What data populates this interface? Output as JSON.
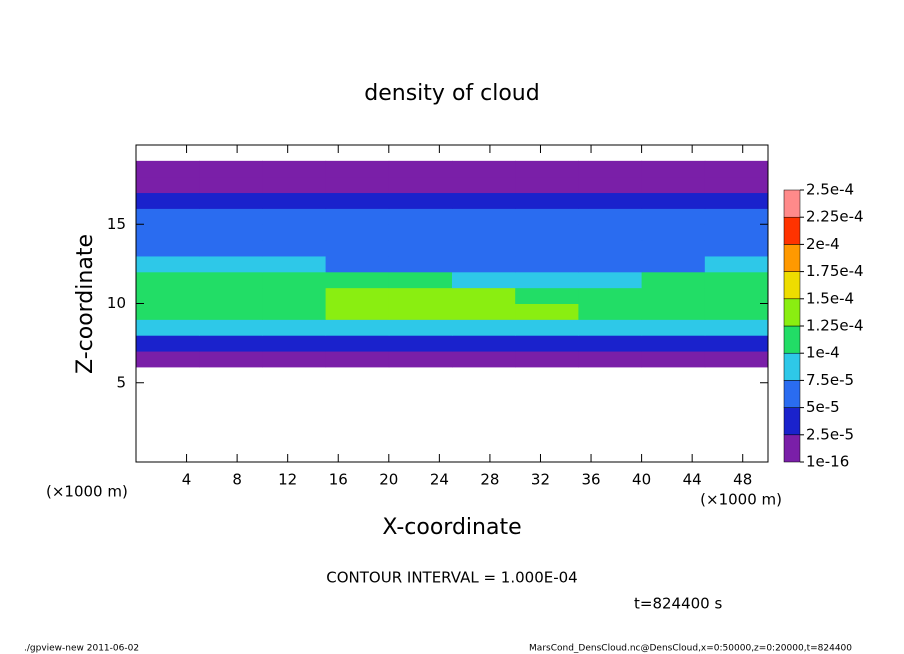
{
  "chart_data": {
    "type": "contour",
    "title": "density of cloud",
    "x_label": "X-coordinate",
    "y_label": "Z-coordinate",
    "x_unit": "(×1000 m)",
    "y_unit": "(×1000 m)",
    "contour_note": "CONTOUR INTERVAL = 1.000E-04",
    "time_note": "t=824400 s",
    "footer_left": "./gpview-new  2011-06-02",
    "footer_right": "MarsCond_DensCloud.nc@DensCloud,x=0:50000,z=0:20000,t=824400",
    "xlim": [
      0,
      50
    ],
    "ylim": [
      0,
      20
    ],
    "xticks": [
      4,
      8,
      12,
      16,
      20,
      24,
      28,
      32,
      36,
      40,
      44,
      48
    ],
    "yticks": [
      5,
      10,
      15
    ],
    "x": [
      2.5,
      7.5,
      12.5,
      17.5,
      22.5,
      27.5,
      32.5,
      37.5,
      42.5,
      47.5
    ],
    "y": [
      6.5,
      7.5,
      8.5,
      9.5,
      10.5,
      11.5,
      12.5,
      13.5,
      14.5,
      15.5,
      16.5,
      17.5,
      18.5
    ],
    "values": [
      [
        1e-05,
        1e-05,
        1e-05,
        1e-05,
        1e-05,
        1e-05,
        1e-05,
        1e-05,
        1e-05,
        1e-05
      ],
      [
        3e-05,
        3e-05,
        3e-05,
        3e-05,
        3e-05,
        3e-05,
        3e-05,
        3e-05,
        4e-05,
        3e-05
      ],
      [
        8e-05,
        8e-05,
        8e-05,
        8.5e-05,
        9e-05,
        9e-05,
        9e-05,
        8e-05,
        8e-05,
        8e-05
      ],
      [
        0.00011,
        0.00011,
        0.000115,
        0.00013,
        0.000135,
        0.00013,
        0.00013,
        0.00011,
        0.000105,
        0.00011
      ],
      [
        0.00012,
        0.000115,
        0.00012,
        0.00013,
        0.00014,
        0.000135,
        0.00012,
        0.000105,
        0.00011,
        0.000115
      ],
      [
        0.000105,
        0.000105,
        0.0001,
        0.00011,
        0.000105,
        9e-05,
        8e-05,
        9e-05,
        0.0001,
        0.0001
      ],
      [
        8e-05,
        8e-05,
        7.5e-05,
        7e-05,
        7e-05,
        6.5e-05,
        6.5e-05,
        7e-05,
        7e-05,
        7.5e-05
      ],
      [
        6.5e-05,
        6e-05,
        6e-05,
        6e-05,
        6e-05,
        6e-05,
        6e-05,
        6e-05,
        6e-05,
        6e-05
      ],
      [
        5.5e-05,
        5.5e-05,
        5.5e-05,
        5.5e-05,
        5.5e-05,
        5.5e-05,
        5.5e-05,
        5.5e-05,
        6e-05,
        5.5e-05
      ],
      [
        5e-05,
        5e-05,
        5e-05,
        5e-05,
        5e-05,
        5.5e-05,
        5.5e-05,
        5e-05,
        5.5e-05,
        5e-05
      ],
      [
        3.5e-05,
        4e-05,
        3.5e-05,
        3.5e-05,
        3.5e-05,
        3.5e-05,
        3.5e-05,
        4e-05,
        4e-05,
        3.5e-05
      ],
      [
        1e-05,
        1e-05,
        1e-05,
        1e-05,
        1e-05,
        1e-05,
        1e-05,
        1e-05,
        1e-05,
        1e-05
      ],
      [
        5e-06,
        5e-06,
        5e-06,
        5e-06,
        5e-06,
        5e-06,
        5e-06,
        5e-06,
        5e-06,
        5e-06
      ]
    ],
    "levels": [
      {
        "value": 1e-16,
        "label": "1e-16"
      },
      {
        "value": 2.5e-05,
        "label": "2.5e-5"
      },
      {
        "value": 5e-05,
        "label": "5e-5"
      },
      {
        "value": 7.5e-05,
        "label": "7.5e-5"
      },
      {
        "value": 0.0001,
        "label": "1e-4"
      },
      {
        "value": 0.000125,
        "label": "1.25e-4"
      },
      {
        "value": 0.00015,
        "label": "1.5e-4"
      },
      {
        "value": 0.000175,
        "label": "1.75e-4"
      },
      {
        "value": 0.0002,
        "label": "2e-4"
      },
      {
        "value": 0.000225,
        "label": "2.25e-4"
      },
      {
        "value": 0.00025,
        "label": "2.5e-4"
      }
    ],
    "colors": [
      "#7a1fa8",
      "#1a22cc",
      "#2a6cf0",
      "#2ec8e8",
      "#22dd66",
      "#8aee11",
      "#eedd00",
      "#ff9900",
      "#ff3300",
      "#ff8a8a"
    ]
  }
}
